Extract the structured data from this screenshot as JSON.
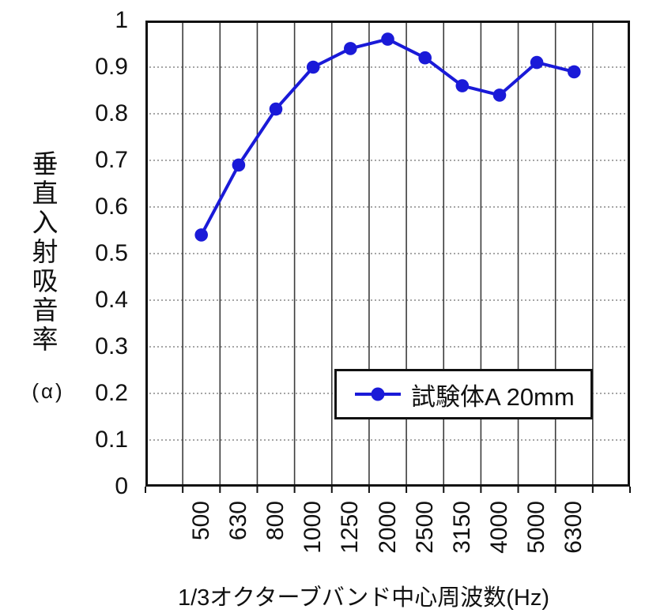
{
  "chart_data": {
    "type": "line",
    "title": "",
    "xlabel": "1/3オクターブバンド中心周波数(Hz)",
    "ylabel": "垂直入射吸音率",
    "ylabel_unit": "(α)",
    "categories": [
      "500",
      "630",
      "800",
      "1000",
      "1250",
      "2000",
      "2500",
      "3150",
      "4000",
      "5000",
      "6300"
    ],
    "series": [
      {
        "name": "試験体A 20mm",
        "color": "#1a1ad8",
        "values": [
          0.54,
          0.69,
          0.81,
          0.9,
          0.94,
          0.96,
          0.92,
          0.86,
          0.84,
          0.91,
          0.89
        ]
      }
    ],
    "ylim": [
      0,
      1
    ],
    "ytick_step": 0.1,
    "ytick_labels": [
      "1",
      "0.9",
      "0.8",
      "0.7",
      "0.6",
      "0.5",
      "0.4",
      "0.3",
      "0.2",
      "0.1",
      "0"
    ],
    "grid": {
      "vertical": "solid",
      "horizontal": "dotted",
      "grid_on": true
    },
    "legend_position": "inside-lower-right",
    "marker": "filled-circle"
  },
  "colors": {
    "series_blue": "#1a1ad8",
    "frame": "#111111",
    "v_grid": "#3c3c3c",
    "h_grid": "#707070",
    "background": "#ffffff"
  }
}
